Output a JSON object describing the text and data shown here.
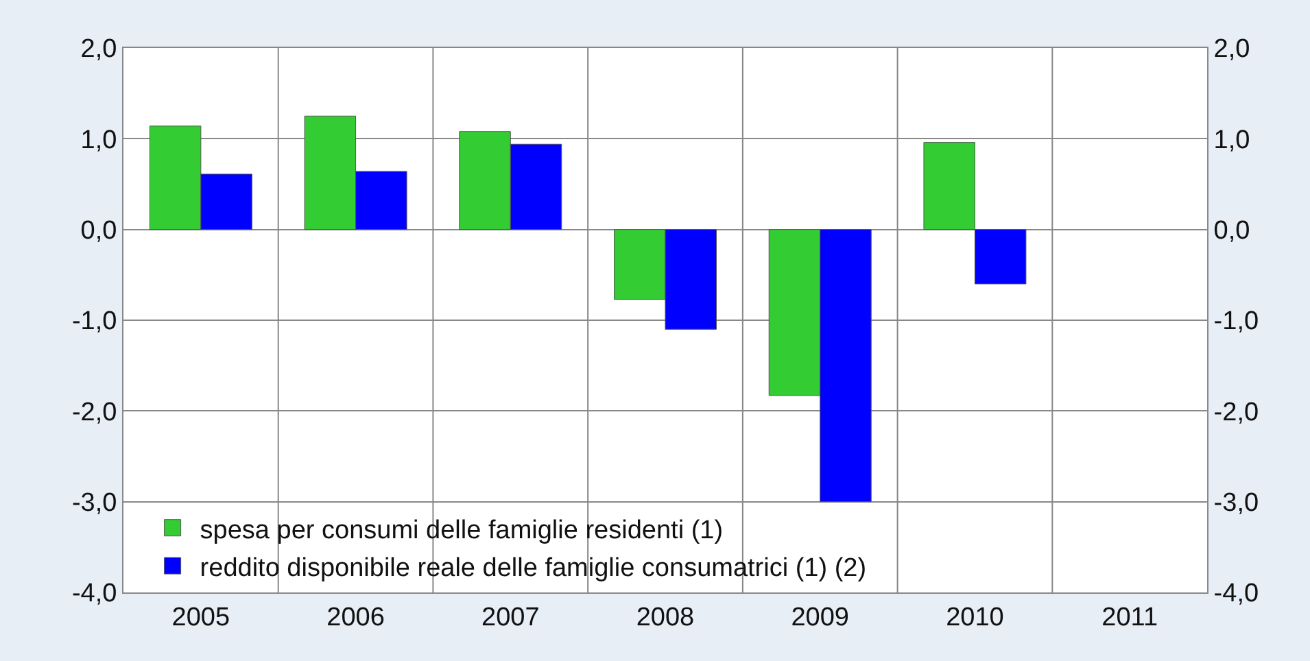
{
  "chart_data": {
    "type": "bar",
    "categories": [
      "2005",
      "2006",
      "2007",
      "2008",
      "2009",
      "2010",
      "2011"
    ],
    "series": [
      {
        "name": "spesa per consumi delle famiglie residenti (1)",
        "color": "#33cc33",
        "values": [
          1.14,
          1.25,
          1.08,
          -0.77,
          -1.83,
          0.96,
          null
        ]
      },
      {
        "name": "reddito disponibile reale delle famiglie consumatrici (1) (2)",
        "color": "#0000ff",
        "values": [
          0.61,
          0.64,
          0.94,
          -1.1,
          -3.0,
          -0.6,
          null
        ]
      }
    ],
    "ylim": [
      -4.0,
      2.0
    ],
    "yticks": [
      {
        "value": -4,
        "label": "-4,0"
      },
      {
        "value": -3,
        "label": "-3,0"
      },
      {
        "value": -2,
        "label": "-2,0"
      },
      {
        "value": -1,
        "label": "-1,0"
      },
      {
        "value": 0,
        "label": "0,0"
      },
      {
        "value": 1,
        "label": "1,0"
      },
      {
        "value": 2,
        "label": "2,0"
      }
    ],
    "y2lim": [
      -4.0,
      2.0
    ],
    "y2ticks": [
      {
        "value": -4,
        "label": "-4,0"
      },
      {
        "value": -3,
        "label": "-3,0"
      },
      {
        "value": -2,
        "label": "-2,0"
      },
      {
        "value": -1,
        "label": "-1,0"
      },
      {
        "value": 0,
        "label": "0,0"
      },
      {
        "value": 1,
        "label": "1,0"
      },
      {
        "value": 2,
        "label": "2,0"
      }
    ],
    "grid": true,
    "legend": "bottom left"
  }
}
